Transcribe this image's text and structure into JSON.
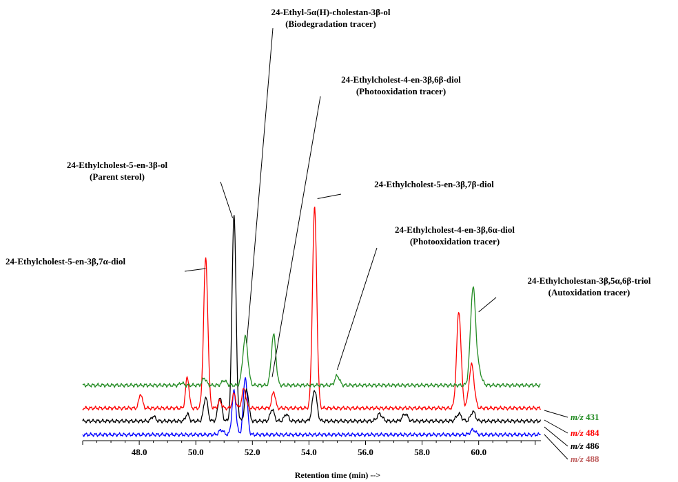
{
  "chart_data": {
    "type": "line",
    "xlabel": "Retention time (min) -->",
    "ylabel": "",
    "xlim": [
      46.0,
      62.2
    ],
    "x_ticks": [
      "48.0",
      "50.0",
      "52.0",
      "54.0",
      "56.0",
      "58.0",
      "60.0"
    ],
    "grid": false,
    "series": [
      {
        "name": "m/z 431",
        "color": "#228b22",
        "baseline": 0.11,
        "peaks": [
          [
            49.5,
            0.01,
            0.06
          ],
          [
            50.3,
            0.03,
            0.07
          ],
          [
            51.0,
            0.02,
            0.08
          ],
          [
            51.75,
            0.2,
            0.09
          ],
          [
            52.75,
            0.21,
            0.08
          ],
          [
            55.0,
            0.04,
            0.08
          ],
          [
            59.8,
            0.4,
            0.09
          ],
          [
            60.0,
            0.06,
            0.1
          ]
        ]
      },
      {
        "name": "m/z 484",
        "color": "#ff0000",
        "baseline": 0.055,
        "peaks": [
          [
            48.05,
            0.06,
            0.06
          ],
          [
            49.7,
            0.13,
            0.06
          ],
          [
            50.35,
            0.62,
            0.075
          ],
          [
            50.85,
            0.03,
            0.06
          ],
          [
            51.35,
            0.06,
            0.06
          ],
          [
            51.7,
            0.08,
            0.07
          ],
          [
            52.75,
            0.07,
            0.06
          ],
          [
            54.2,
            0.83,
            0.075
          ],
          [
            59.3,
            0.4,
            0.08
          ],
          [
            59.75,
            0.18,
            0.09
          ]
        ]
      },
      {
        "name": "m/z 486",
        "color": "#000000",
        "baseline": 0.03,
        "peaks": [
          [
            48.5,
            0.02,
            0.07
          ],
          [
            49.7,
            0.03,
            0.06
          ],
          [
            50.35,
            0.1,
            0.07
          ],
          [
            50.85,
            0.1,
            0.07
          ],
          [
            51.35,
            0.86,
            0.07
          ],
          [
            51.8,
            0.13,
            0.07
          ],
          [
            52.7,
            0.05,
            0.07
          ],
          [
            53.2,
            0.03,
            0.07
          ],
          [
            54.2,
            0.13,
            0.08
          ],
          [
            56.5,
            0.03,
            0.09
          ],
          [
            57.4,
            0.03,
            0.09
          ],
          [
            59.3,
            0.03,
            0.09
          ],
          [
            59.8,
            0.04,
            0.08
          ]
        ]
      },
      {
        "name": "m/z 488",
        "color": "#0000ff",
        "baseline": 0.005,
        "peaks": [
          [
            50.9,
            0.02,
            0.08
          ],
          [
            51.35,
            0.18,
            0.07
          ],
          [
            51.75,
            0.24,
            0.07
          ],
          [
            59.8,
            0.02,
            0.09
          ]
        ]
      }
    ],
    "annotations": [
      {
        "lines": [
          "24-Ethyl-5α(H)-cholestan-3β-ol",
          "(Biodegradation tracer)"
        ],
        "target": [
          51.8,
          0.37
        ]
      },
      {
        "lines": [
          "24-Ethylcholest-4-en-3β,6β-diol",
          "(Photooxidation tracer)"
        ],
        "target": [
          52.7,
          0.23
        ]
      },
      {
        "lines": [
          "24-Ethylcholest-5-en-3β-ol",
          "(Parent sterol)"
        ],
        "target": [
          51.3,
          0.89
        ]
      },
      {
        "lines": [
          "24-Ethylcholest-5-en-3β,7β-diol"
        ],
        "target": [
          54.3,
          0.97
        ]
      },
      {
        "lines": [
          "24-Ethylcholest-4-en-3β,6α-diol",
          "(Photooxidation tracer)"
        ],
        "target": [
          55.0,
          0.26
        ]
      },
      {
        "lines": [
          "24-Ethylcholest-5-en-3β,7α-diol"
        ],
        "target": [
          50.35,
          0.68
        ]
      },
      {
        "lines": [
          "24-Ethylcholestan-3β,5α,6β-triol",
          "(Autoxidation tracer)"
        ],
        "target": [
          60.0,
          0.5
        ]
      }
    ],
    "mz_labels": [
      {
        "prefix": "m/z",
        "value": "431",
        "color": "#228b22"
      },
      {
        "prefix": "m/z",
        "value": "484",
        "color": "#ff0000"
      },
      {
        "prefix": "m/z",
        "value": "486",
        "color": "#000000"
      },
      {
        "prefix": "m/z",
        "value": "488",
        "color": "#c06060"
      }
    ]
  }
}
